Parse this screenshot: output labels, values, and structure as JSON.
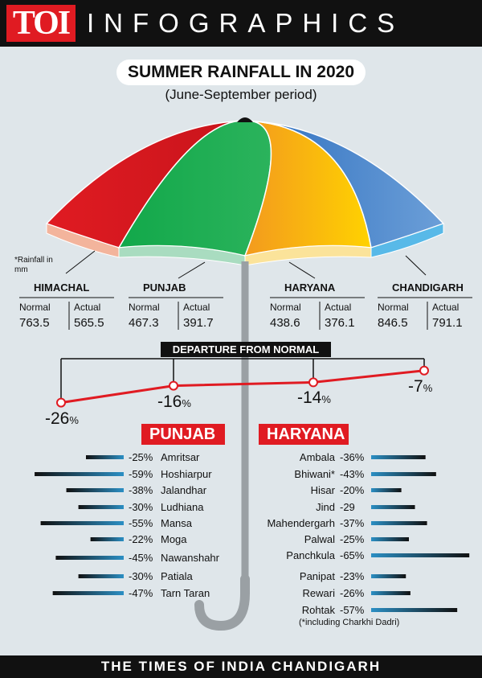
{
  "header": {
    "logo": "TOI",
    "title": "INFOGRAPHICS"
  },
  "footer": "THE TIMES OF INDIA CHANDIGARH",
  "note": "*Rainfall in mm",
  "footnote": "(*including Charkhi Dadri)",
  "chart_data": [
    {
      "type": "table",
      "title": "SUMMER RAINFALL IN 2020",
      "subtitle": "(June-September period)",
      "columns": [
        "Normal",
        "Actual"
      ],
      "rows": [
        {
          "state": "HIMACHAL",
          "normal": "763.5",
          "actual": "565.5",
          "color": "#e01b22"
        },
        {
          "state": "PUNJAB",
          "normal": "467.3",
          "actual": "391.7",
          "color": "#19a14a"
        },
        {
          "state": "HARYANA",
          "normal": "438.6",
          "actual": "376.1",
          "color": "#f5a800"
        },
        {
          "state": "CHANDIGARH",
          "normal": "846.5",
          "actual": "791.1",
          "color": "#2e6fbf"
        }
      ]
    },
    {
      "type": "line",
      "title": "DEPARTURE FROM NORMAL",
      "categories": [
        "HIMACHAL",
        "PUNJAB",
        "HARYANA",
        "CHANDIGARH"
      ],
      "values": [
        -26,
        -16,
        -14,
        -7
      ],
      "labels": [
        "-26",
        "-16",
        "-14",
        "-7"
      ],
      "unit": "%",
      "color": "#e01b22"
    },
    {
      "type": "bar",
      "title": "PUNJAB",
      "categories": [
        "Amritsar",
        "Hoshiarpur",
        "Jalandhar",
        "Ludhiana",
        "Mansa",
        "Moga",
        "Nawanshahr",
        "Patiala",
        "Tarn Taran"
      ],
      "values": [
        -25,
        -59,
        -38,
        -30,
        -55,
        -22,
        -45,
        -30,
        -47
      ],
      "labels": [
        "-25%",
        "-59%",
        "-38%",
        "-30%",
        "-55%",
        "-22%",
        "-45%",
        "-30%",
        "-47%"
      ]
    },
    {
      "type": "bar",
      "title": "HARYANA",
      "categories": [
        "Ambala",
        "Bhiwani*",
        "Hisar",
        "Jind",
        "Mahendergarh",
        "Palwal",
        "Panchkula",
        "Panipat",
        "Rewari",
        "Rohtak"
      ],
      "values": [
        -36,
        -43,
        -20,
        -29,
        -37,
        -25,
        -65,
        -23,
        -26,
        -57
      ],
      "labels": [
        "-36%",
        "-43%",
        "-20%",
        "-29",
        "-37%",
        "-25%",
        "-65%",
        "-23%",
        "-26%",
        "-57%"
      ]
    }
  ]
}
